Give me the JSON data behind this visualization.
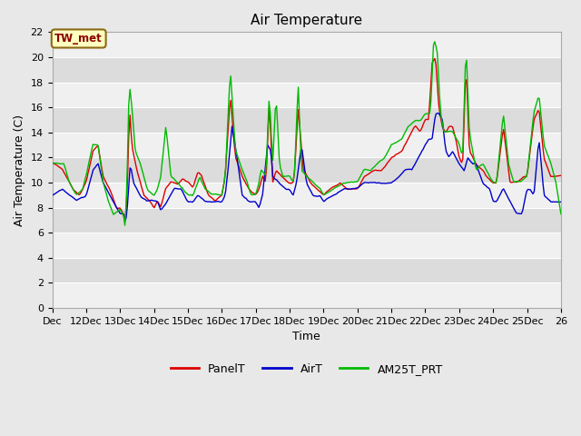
{
  "title": "Air Temperature",
  "ylabel": "Air Temperature (C)",
  "xlabel": "Time",
  "ylim": [
    0,
    22
  ],
  "yticks": [
    0,
    2,
    4,
    6,
    8,
    10,
    12,
    14,
    16,
    18,
    20,
    22
  ],
  "xtick_labels": [
    "Dec",
    "12Dec",
    "13Dec",
    "14Dec",
    "15Dec",
    "16Dec",
    "17Dec",
    "18Dec",
    "19Dec",
    "20Dec",
    "21Dec",
    "22Dec",
    "23Dec",
    "24Dec",
    "25Dec",
    "26"
  ],
  "annotation_text": "TW_met",
  "annotation_color": "#8B0000",
  "annotation_bg": "#FFFFC0",
  "annotation_border": "#8B6914",
  "fig_bg": "#E8E8E8",
  "band_dark": "#DCDCDC",
  "band_light": "#F0F0F0",
  "line_colors": {
    "PanelT": "#DD0000",
    "AirT": "#0000CC",
    "AM25T_PRT": "#00BB00"
  },
  "title_fontsize": 11,
  "axis_fontsize": 9,
  "tick_fontsize": 8
}
